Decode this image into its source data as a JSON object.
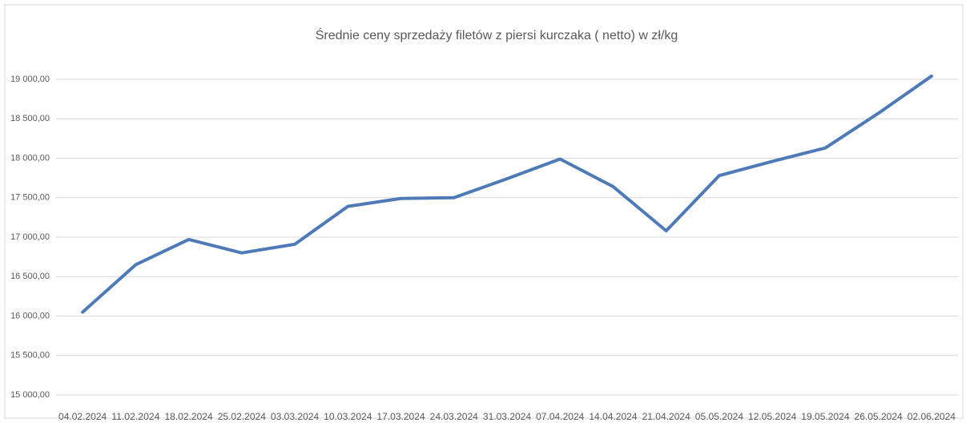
{
  "chart_data": {
    "type": "line",
    "title": "Średnie ceny sprzedaży filetów z piersi kurczaka ( netto) w zł/kg",
    "categories": [
      "04.02.2024",
      "11.02.2024",
      "18.02.2024",
      "25.02.2024",
      "03.03.2024",
      "10.03.2024",
      "17.03.2024",
      "24.03.2024",
      "31.03.2024",
      "07.04.2024",
      "14.04.2024",
      "21.04.2024",
      "05.05.2024",
      "12.05.2024",
      "19.05.2024",
      "26.05.2024",
      "02.06.2024"
    ],
    "series": [
      {
        "name": "Średnie ceny",
        "color": "#4f7ab8",
        "values": [
          16050,
          16650,
          16970,
          16800,
          16910,
          17390,
          17490,
          17500,
          17740,
          17990,
          17640,
          17080,
          17780,
          17960,
          18130,
          18570,
          19040
        ]
      }
    ],
    "ylim": [
      15000,
      19000
    ],
    "yticks": [
      {
        "value": 15000,
        "label": "15 000,00"
      },
      {
        "value": 15500,
        "label": "15 500,00"
      },
      {
        "value": 16000,
        "label": "16 000,00"
      },
      {
        "value": 16500,
        "label": "16 500,00"
      },
      {
        "value": 17000,
        "label": "17 000,00"
      },
      {
        "value": 17500,
        "label": "17 500,00"
      },
      {
        "value": 18000,
        "label": "18 000,00"
      },
      {
        "value": 18500,
        "label": "18 500,00"
      },
      {
        "value": 19000,
        "label": "19 000,00"
      }
    ],
    "grid": true
  }
}
